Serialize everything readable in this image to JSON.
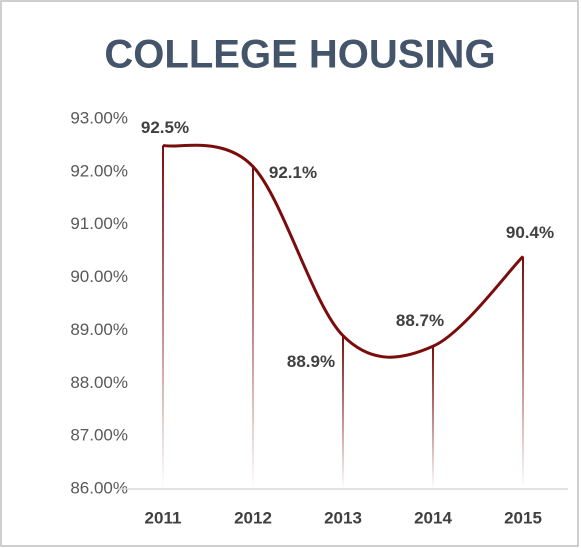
{
  "chart_data": {
    "type": "line",
    "title": "COLLEGE HOUSING",
    "categories": [
      "2011",
      "2012",
      "2013",
      "2014",
      "2015"
    ],
    "series": [
      {
        "color": "#7b0c0c",
        "values": [
          92.5,
          92.1,
          88.9,
          88.7,
          90.4
        ],
        "value_labels": [
          "92.5%",
          "92.1%",
          "88.9%",
          "88.7%",
          "90.4%"
        ]
      }
    ],
    "ylim": [
      86,
      93
    ],
    "yticks": [
      {
        "value": 86,
        "label": "86.00%"
      },
      {
        "value": 87,
        "label": "87.00%"
      },
      {
        "value": 88,
        "label": "88.00%"
      },
      {
        "value": 89,
        "label": "89.00%"
      },
      {
        "value": 90,
        "label": "90.00%"
      },
      {
        "value": 91,
        "label": "91.00%"
      },
      {
        "value": 92,
        "label": "92.00%"
      },
      {
        "value": 93,
        "label": "93.00%"
      }
    ],
    "smooth": true,
    "drop_lines": true
  }
}
